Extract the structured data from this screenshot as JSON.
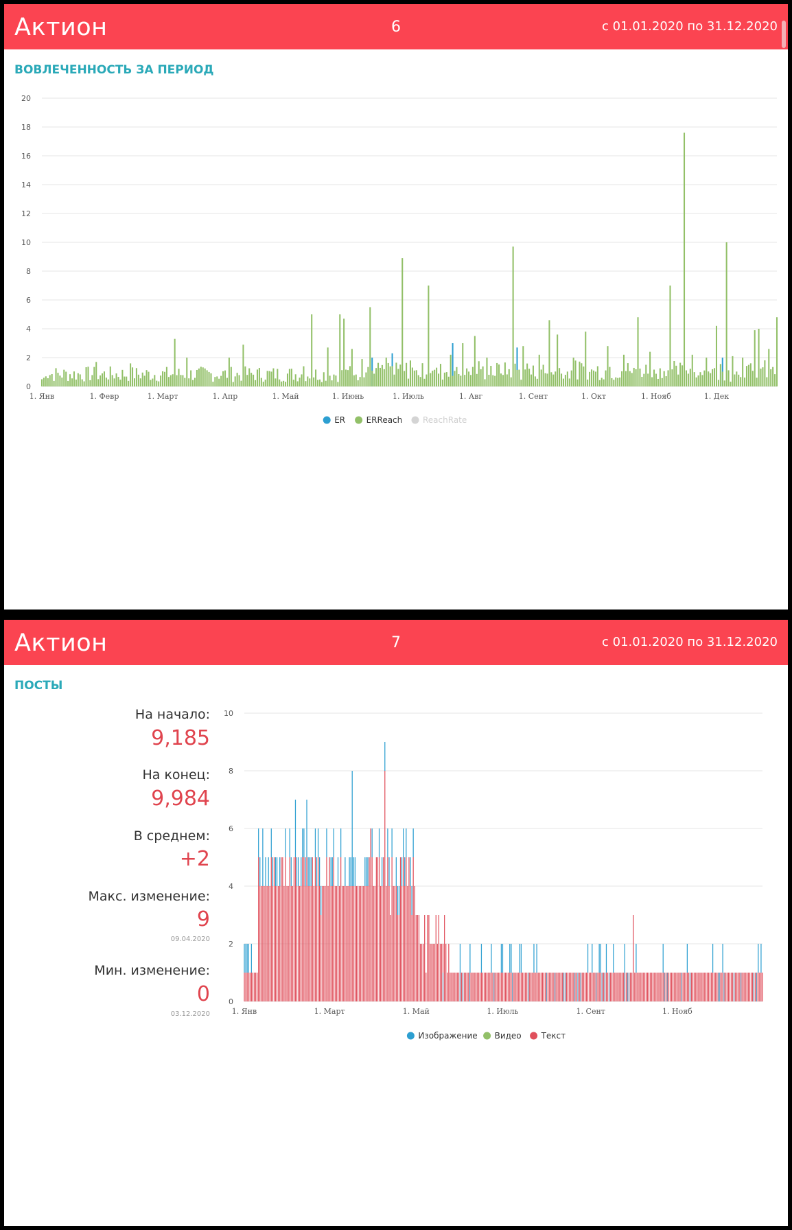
{
  "slides": [
    {
      "brand": "Актион",
      "page_number": "6",
      "period": "с 01.01.2020 по 31.12.2020",
      "section_title": "ВОВЛЕЧЕННОСТЬ ЗА ПЕРИОД"
    },
    {
      "brand": "Актион",
      "page_number": "7",
      "period": "с 01.01.2020 по 31.12.2020",
      "section_title": "ПОСТЫ"
    }
  ],
  "stats": {
    "start_label": "На начало:",
    "start_value": "9,185",
    "end_label": "На конец:",
    "end_value": "9,984",
    "avg_label": "В среднем:",
    "avg_value": "+2",
    "max_label": "Макс. изменение:",
    "max_value": "9",
    "max_date": "09.04.2020",
    "min_label": "Мин. изменение:",
    "min_value": "0",
    "min_date": "03.12.2020"
  },
  "colors": {
    "header": "#fb4451",
    "accent": "#2aa9b8",
    "er": "#2d9fd1",
    "erreach": "#92c068",
    "reachrate": "#d4d4d4",
    "image": "#2d9fd1",
    "video": "#92c068",
    "text": "#e0505c"
  },
  "chart_data": [
    {
      "type": "bar",
      "title": "ВОВЛЕЧЕННОСТЬ ЗА ПЕРИОД",
      "x_unit": "day of year 2020",
      "x_range": [
        1,
        366
      ],
      "ylim": [
        0,
        20
      ],
      "yticks": [
        0,
        2,
        4,
        6,
        8,
        10,
        12,
        14,
        16,
        18,
        20
      ],
      "xticks": [
        {
          "day": 1,
          "label": "1. Янв"
        },
        {
          "day": 32,
          "label": "1. Февр"
        },
        {
          "day": 61,
          "label": "1. Март"
        },
        {
          "day": 92,
          "label": "1. Апр"
        },
        {
          "day": 122,
          "label": "1. Май"
        },
        {
          "day": 153,
          "label": "1. Июнь"
        },
        {
          "day": 183,
          "label": "1. Июль"
        },
        {
          "day": 214,
          "label": "1. Авг"
        },
        {
          "day": 245,
          "label": "1. Сент"
        },
        {
          "day": 275,
          "label": "1. Окт"
        },
        {
          "day": 306,
          "label": "1. Нояб"
        },
        {
          "day": 336,
          "label": "1. Дек"
        }
      ],
      "legend": [
        {
          "name": "ER",
          "color": "#2d9fd1"
        },
        {
          "name": "ERReach",
          "color": "#92c068"
        },
        {
          "name": "ReachRate",
          "color": "#d4d4d4",
          "disabled": true
        }
      ],
      "baseline": {
        "range": [
          0.3,
          1.4
        ]
      },
      "series": [
        {
          "name": "ERReach",
          "peaks": [
            [
              28,
              1.7
            ],
            [
              45,
              1.6
            ],
            [
              67,
              3.3
            ],
            [
              73,
              2.0
            ],
            [
              94,
              2.0
            ],
            [
              101,
              2.9
            ],
            [
              131,
              1.4
            ],
            [
              135,
              5.0
            ],
            [
              143,
              2.7
            ],
            [
              149,
              5.0
            ],
            [
              151,
              4.7
            ],
            [
              155,
              2.6
            ],
            [
              160,
              1.9
            ],
            [
              164,
              5.5
            ],
            [
              172,
              2.0
            ],
            [
              180,
              8.9
            ],
            [
              184,
              1.8
            ],
            [
              193,
              7.0
            ],
            [
              204,
              2.2
            ],
            [
              210,
              3.0
            ],
            [
              216,
              3.5
            ],
            [
              222,
              2.0
            ],
            [
              235,
              9.7
            ],
            [
              240,
              2.8
            ],
            [
              248,
              2.2
            ],
            [
              253,
              4.6
            ],
            [
              257,
              3.6
            ],
            [
              265,
              2.0
            ],
            [
              271,
              3.8
            ],
            [
              282,
              2.8
            ],
            [
              290,
              2.2
            ],
            [
              297,
              4.8
            ],
            [
              303,
              2.4
            ],
            [
              313,
              7.0
            ],
            [
              320,
              17.6
            ],
            [
              324,
              2.2
            ],
            [
              331,
              2.0
            ],
            [
              336,
              4.2
            ],
            [
              341,
              10.0
            ],
            [
              344,
              2.1
            ],
            [
              349,
              2.0
            ],
            [
              355,
              3.9
            ],
            [
              357,
              4.0
            ],
            [
              362,
              2.6
            ],
            [
              366,
              4.8
            ]
          ]
        },
        {
          "name": "ER",
          "peaks": [
            [
              165,
              2.0
            ],
            [
              175,
              2.3
            ],
            [
              205,
              3.0
            ],
            [
              237,
              2.7
            ],
            [
              339,
              2.0
            ]
          ]
        }
      ]
    },
    {
      "type": "bar",
      "title": "ПОСТЫ",
      "stacked": true,
      "x_unit": "day of year 2020",
      "x_range": [
        1,
        366
      ],
      "ylim": [
        0,
        10
      ],
      "yticks": [
        0,
        2,
        4,
        6,
        8,
        10
      ],
      "xticks": [
        {
          "day": 1,
          "label": "1. Янв"
        },
        {
          "day": 61,
          "label": "1. Март"
        },
        {
          "day": 122,
          "label": "1. Май"
        },
        {
          "day": 183,
          "label": "1. Июль"
        },
        {
          "day": 245,
          "label": "1. Сент"
        },
        {
          "day": 306,
          "label": "1. Нояб"
        }
      ],
      "legend": [
        {
          "name": "Изображение",
          "color": "#2d9fd1"
        },
        {
          "name": "Видео",
          "color": "#92c068"
        },
        {
          "name": "Текст",
          "color": "#e0505c"
        }
      ],
      "segments": [
        {
          "from": 1,
          "to": 10,
          "text": 1,
          "image": 1
        },
        {
          "from": 11,
          "to": 30,
          "text": 4,
          "image": 1
        },
        {
          "from": 31,
          "to": 60,
          "text": 4,
          "image": 1
        },
        {
          "from": 61,
          "to": 100,
          "text": 4,
          "image": 1
        },
        {
          "from": 101,
          "to": 121,
          "text": 4,
          "image": 1
        },
        {
          "from": 122,
          "to": 145,
          "text": 2,
          "image": 0
        },
        {
          "from": 146,
          "to": 366,
          "text": 1,
          "image": 0
        }
      ],
      "peaks": [
        {
          "day": 14,
          "text": 4,
          "image": 2
        },
        {
          "day": 37,
          "text": 5,
          "image": 2
        },
        {
          "day": 45,
          "text": 5,
          "image": 2
        },
        {
          "day": 77,
          "text": 4,
          "image": 4
        },
        {
          "day": 90,
          "text": 6,
          "image": 0
        },
        {
          "day": 100,
          "text": 8,
          "image": 1
        },
        {
          "day": 113,
          "text": 5,
          "image": 1
        },
        {
          "day": 120,
          "text": 5,
          "image": 1
        },
        {
          "day": 275,
          "text": 3,
          "image": 0
        }
      ]
    }
  ]
}
